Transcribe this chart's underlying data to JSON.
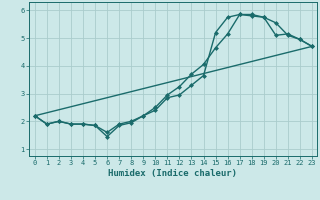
{
  "xlabel": "Humidex (Indice chaleur)",
  "background_color": "#cce8e8",
  "grid_color": "#aacccc",
  "line_color": "#1a6b6b",
  "xlim": [
    -0.5,
    23.4
  ],
  "ylim": [
    0.75,
    6.3
  ],
  "xticks": [
    0,
    1,
    2,
    3,
    4,
    5,
    6,
    7,
    8,
    9,
    10,
    11,
    12,
    13,
    14,
    15,
    16,
    17,
    18,
    19,
    20,
    21,
    22,
    23
  ],
  "yticks": [
    1,
    2,
    3,
    4,
    5,
    6
  ],
  "line1_x": [
    0,
    1,
    2,
    3,
    4,
    5,
    6,
    7,
    8,
    9,
    10,
    11,
    12,
    13,
    14,
    15,
    16,
    17,
    18,
    19,
    20,
    21,
    22,
    23
  ],
  "line1_y": [
    2.2,
    1.9,
    2.0,
    1.9,
    1.9,
    1.85,
    1.6,
    1.9,
    2.0,
    2.2,
    2.5,
    2.95,
    3.25,
    3.7,
    4.05,
    4.65,
    5.15,
    5.85,
    5.85,
    5.75,
    5.1,
    5.15,
    4.95,
    4.7
  ],
  "line2_x": [
    0,
    1,
    2,
    3,
    4,
    5,
    6,
    7,
    8,
    9,
    10,
    11,
    12,
    13,
    14,
    15,
    16,
    17,
    18,
    19,
    20,
    21,
    22,
    23
  ],
  "line2_y": [
    2.2,
    1.9,
    2.0,
    1.9,
    1.9,
    1.85,
    1.45,
    1.85,
    1.95,
    2.2,
    2.4,
    2.85,
    2.95,
    3.3,
    3.65,
    5.2,
    5.75,
    5.85,
    5.8,
    5.75,
    5.55,
    5.1,
    4.95,
    4.7
  ],
  "line3_x": [
    0,
    23
  ],
  "line3_y": [
    2.2,
    4.7
  ],
  "marker_size": 2.5,
  "line_width": 1.0,
  "xlabel_fontsize": 6.5,
  "tick_fontsize": 5.0
}
